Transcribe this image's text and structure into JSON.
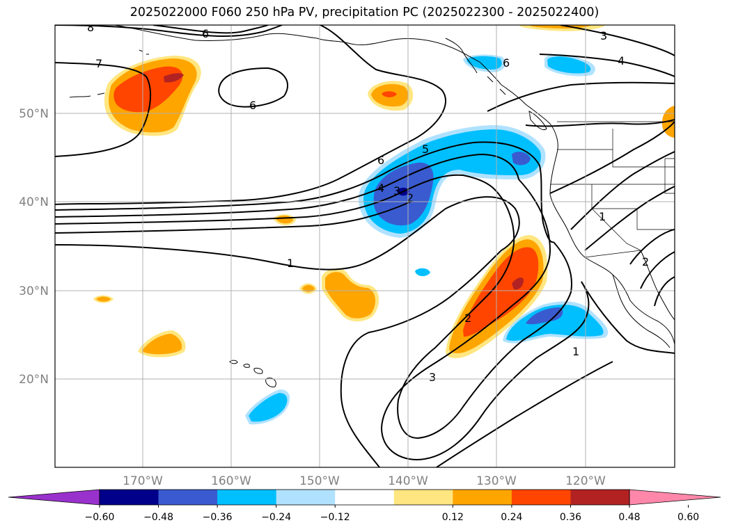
{
  "title": "2025022000 F060 250 hPa PV, precipitation PC (2025022300 - 2025022400)",
  "lat_labels": [
    "50°N",
    "40°N",
    "30°N",
    "20°N"
  ],
  "lon_labels": [
    "170°W",
    "160°W",
    "150°W",
    "140°W",
    "130°W",
    "120°W"
  ],
  "colorbar": {
    "colors": [
      "#9932cc",
      "#00008b",
      "#3a5bcf",
      "#00bfff",
      "#b0e2ff",
      "#ffffff",
      "#ffe680",
      "#ffa500",
      "#ff4500",
      "#b22222",
      "#ff88aa"
    ],
    "tick_labels": [
      "−0.60",
      "−0.48",
      "−0.36",
      "−0.24",
      "−0.12",
      "0.12",
      "0.24",
      "0.36",
      "0.48",
      "0.60"
    ]
  },
  "contour_labels": [
    "8",
    "6",
    "7",
    "6",
    "3",
    "4",
    "6",
    "6",
    "5",
    "4",
    "3",
    "2",
    "1",
    "1",
    "2",
    "2",
    "3",
    "1"
  ]
}
